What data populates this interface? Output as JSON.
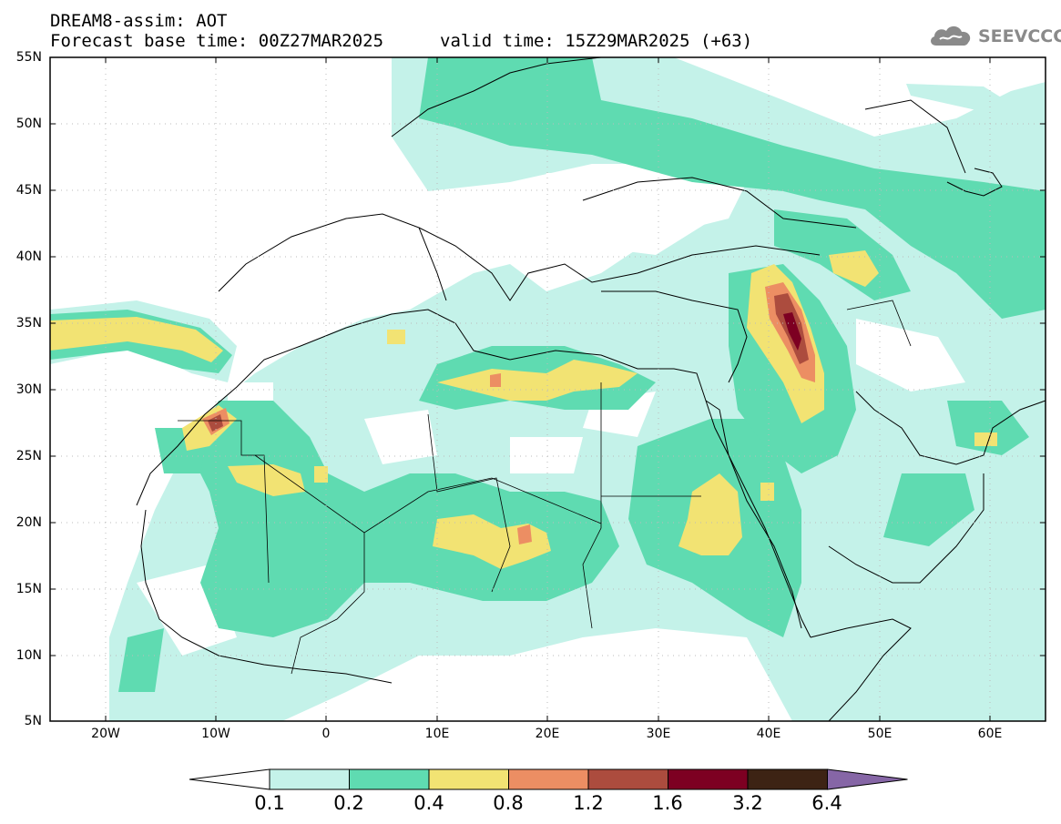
{
  "title": {
    "line1": "DREAM8-assim: AOT",
    "line2": "Forecast base time: 00Z27MAR2025",
    "valid": "valid time: 15Z29MAR2025 (+63)"
  },
  "logo": {
    "text": "SEEVCCC",
    "icon": "cloud-icon"
  },
  "axes": {
    "lat_labels": [
      "55N",
      "50N",
      "45N",
      "40N",
      "35N",
      "30N",
      "25N",
      "20N",
      "15N",
      "10N",
      "5N"
    ],
    "lon_labels": [
      "20W",
      "10W",
      "0",
      "10E",
      "20E",
      "30E",
      "40E",
      "50E",
      "60E"
    ]
  },
  "legend": {
    "labels": [
      "0.1",
      "0.2",
      "0.4",
      "0.8",
      "1.2",
      "1.6",
      "3.2",
      "6.4"
    ],
    "colors": [
      "#ffffff",
      "#c4f2e9",
      "#5fdbb1",
      "#f2e373",
      "#ec8e63",
      "#ac4c3e",
      "#7d0022",
      "#3d2314",
      "#8666a6"
    ]
  }
}
